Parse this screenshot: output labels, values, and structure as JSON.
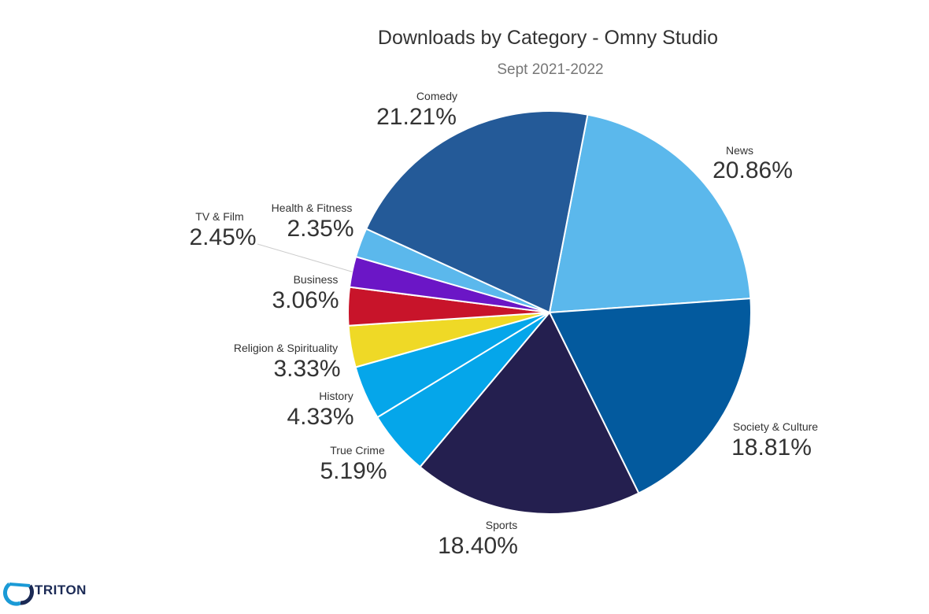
{
  "chart_data": {
    "type": "pie",
    "title": "Downloads by Category - Omny Studio",
    "subtitle": "Sept 2021-2022",
    "slices": [
      {
        "label": "News",
        "value": 20.86,
        "pct_label": "20.86%",
        "color": "#5bb8ec"
      },
      {
        "label": "Society & Culture",
        "value": 18.81,
        "pct_label": "18.81%",
        "color": "#035a9e"
      },
      {
        "label": "Sports",
        "value": 18.4,
        "pct_label": "18.40%",
        "color": "#241f4f"
      },
      {
        "label": "True Crime",
        "value": 5.19,
        "pct_label": "5.19%",
        "color": "#05a6ea"
      },
      {
        "label": "History",
        "value": 4.33,
        "pct_label": "4.33%",
        "color": "#05a6ea"
      },
      {
        "label": "Religion & Spirituality",
        "value": 3.33,
        "pct_label": "3.33%",
        "color": "#efd926"
      },
      {
        "label": "Business",
        "value": 3.06,
        "pct_label": "3.06%",
        "color": "#c8142a"
      },
      {
        "label": "TV & Film",
        "value": 2.45,
        "pct_label": "2.45%",
        "color": "#6b16c6"
      },
      {
        "label": "Health & Fitness",
        "value": 2.35,
        "pct_label": "2.35%",
        "color": "#5bb8ec"
      },
      {
        "label": "Comedy",
        "value": 21.21,
        "pct_label": "21.21%",
        "color": "#245a98"
      }
    ]
  },
  "branding": {
    "logo_text": "TRITON"
  }
}
